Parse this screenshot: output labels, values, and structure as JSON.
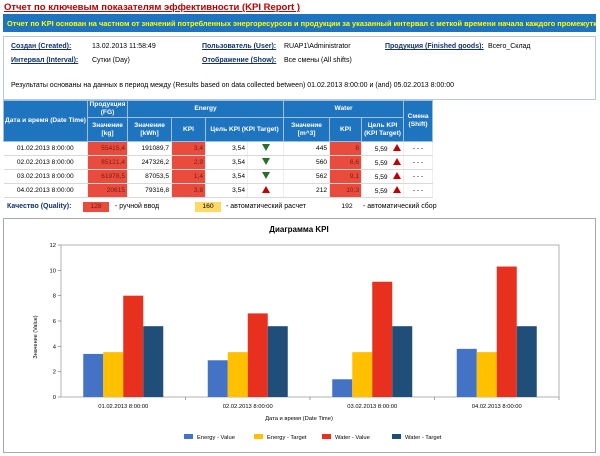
{
  "report": {
    "title": "Отчет по ключевым показателям эффективности (KPI Report )",
    "banner": "Отчет по KPI основан на частном от значений потребленных энергоресурсов и продукции за указанный интервал с меткой времени начала каждого промежутка"
  },
  "info": {
    "created_label": "Создан (Created):",
    "created_value": "13.02.2013 11:58:49",
    "user_label": "Пользователь (User):",
    "user_value": "RUAP1\\Administrator",
    "goods_label": "Продукция (Finished goods):",
    "goods_value": "Всего_Склад",
    "interval_label": "Интервал (Interval):",
    "interval_value": "Сутки (Day)",
    "show_label": "Отображение (Show):",
    "show_value": "Все смены (All shifts)",
    "results_text": "Результаты основаны на данных в период между (Results based on data collected between) 01.02.2013 8:00:00 и (and) 05.02.2013 8:00:00"
  },
  "table": {
    "headers": {
      "datetime": "Дата и время (Date Time)",
      "production": "Продукция (FG)",
      "production_value": "Значение [kg]",
      "energy": "Energy",
      "energy_value": "Значение [kWh]",
      "energy_kpi": "KPI",
      "energy_target": "Цель KPI (KPI Target)",
      "water": "Water",
      "water_value": "Значение [m^3]",
      "water_kpi": "KPI",
      "water_target": "Цель KPI (KPI Target)",
      "shift": "Смена (Shift)"
    },
    "rows": [
      {
        "date": "01.02.2013 8:00:00",
        "fg": "55415,4",
        "e_val": "191089,7",
        "e_kpi": "3,4",
        "e_target": "3,54",
        "e_trend": "down",
        "w_val": "445",
        "w_kpi": "8",
        "w_target": "5,59",
        "w_trend": "up",
        "shift": "- - -"
      },
      {
        "date": "02.02.2013 8:00:00",
        "fg": "85121,4",
        "e_val": "247326,2",
        "e_kpi": "2,9",
        "e_target": "3,54",
        "e_trend": "down",
        "w_val": "560",
        "w_kpi": "6,6",
        "w_target": "5,59",
        "w_trend": "up",
        "shift": "- - -"
      },
      {
        "date": "03.02.2013 8:00:00",
        "fg": "61978,5",
        "e_val": "87053,5",
        "e_kpi": "1,4",
        "e_target": "3,54",
        "e_trend": "down",
        "w_val": "562",
        "w_kpi": "9,1",
        "w_target": "5,59",
        "w_trend": "up",
        "shift": "- - -"
      },
      {
        "date": "04.02.2013 8:00:00",
        "fg": "20615",
        "e_val": "79316,8",
        "e_kpi": "3,8",
        "e_target": "3,54",
        "e_trend": "up",
        "w_val": "212",
        "w_kpi": "10,3",
        "w_target": "5,59",
        "w_trend": "up",
        "shift": "- - -"
      }
    ]
  },
  "quality": {
    "label": "Качество (Quality):",
    "manual_code": "128",
    "manual_text": "- ручной ввод",
    "auto_calc_code": "160",
    "auto_calc_text": "- автоматический расчет",
    "auto_collect_code": "192",
    "auto_collect_text": "- автоматический сбор"
  },
  "colors": {
    "header_blue": "#1f74bf",
    "banner_text": "#ffff00",
    "manual": "#e94c3d",
    "auto_calc": "#ffd966",
    "energy_value": "#4472c4",
    "energy_target": "#ffc000",
    "water_value": "#e8301e",
    "water_target": "#1f4e79"
  },
  "chart_data": {
    "type": "bar",
    "title": "Диаграмма KPI",
    "xlabel": "Дата и время (Date Time)",
    "ylabel": "Значение (Value)",
    "ylim": [
      0,
      12
    ],
    "yticks": [
      "0",
      "2",
      "4",
      "6",
      "8",
      "10",
      "12"
    ],
    "categories": [
      "01.02.2013 8:00:00",
      "02.02.2013 8:00:00",
      "03.02.2013 8:00:00",
      "04.02.2013 8:00:00"
    ],
    "series": [
      {
        "name": "Energy - Value",
        "values": [
          3.4,
          2.9,
          1.4,
          3.8
        ]
      },
      {
        "name": "Energy - Target",
        "values": [
          3.54,
          3.54,
          3.54,
          3.54
        ]
      },
      {
        "name": "Water - Value",
        "values": [
          8,
          6.6,
          9.1,
          10.3
        ]
      },
      {
        "name": "Water - Target",
        "values": [
          5.59,
          5.59,
          5.59,
          5.59
        ]
      }
    ],
    "legend_position": "bottom",
    "grid": false
  }
}
